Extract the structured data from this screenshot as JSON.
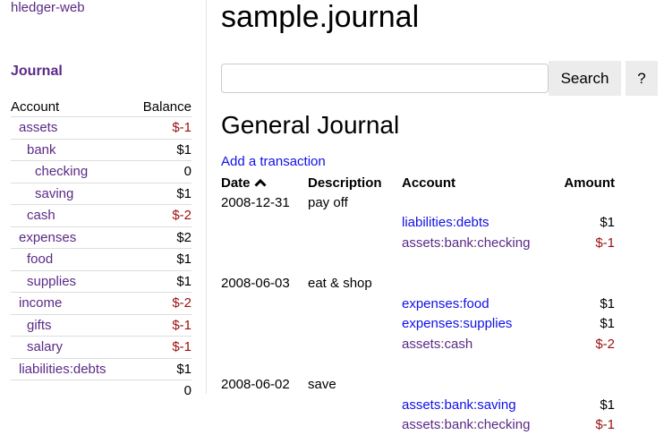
{
  "sidebar": {
    "brand": "hledger-web",
    "journal_link": "Journal",
    "headers": {
      "account": "Account",
      "balance": "Balance"
    },
    "accounts": [
      {
        "name": "assets",
        "depth": 0,
        "balance": "$-1",
        "negative": true
      },
      {
        "name": "bank",
        "depth": 1,
        "balance": "$1",
        "negative": false
      },
      {
        "name": "checking",
        "depth": 2,
        "balance": "0",
        "negative": false
      },
      {
        "name": "saving",
        "depth": 2,
        "balance": "$1",
        "negative": false
      },
      {
        "name": "cash",
        "depth": 1,
        "balance": "$-2",
        "negative": true
      },
      {
        "name": "expenses",
        "depth": 0,
        "balance": "$2",
        "negative": false
      },
      {
        "name": "food",
        "depth": 1,
        "balance": "$1",
        "negative": false
      },
      {
        "name": "supplies",
        "depth": 1,
        "balance": "$1",
        "negative": false
      },
      {
        "name": "income",
        "depth": 0,
        "balance": "$-2",
        "negative": true
      },
      {
        "name": "gifts",
        "depth": 1,
        "balance": "$-1",
        "negative": true
      },
      {
        "name": "salary",
        "depth": 1,
        "balance": "$-1",
        "negative": true
      },
      {
        "name": "liabilities:debts",
        "depth": 0,
        "balance": "$1",
        "negative": false
      }
    ],
    "total": "0"
  },
  "main": {
    "title": "sample.journal",
    "search": {
      "value": "",
      "placeholder": ""
    },
    "search_label": "Search",
    "help_label": "?",
    "heading": "General Journal",
    "add_link": "Add a transaction",
    "columns": {
      "date": "Date",
      "date_sort_icon": "chevron-up-icon",
      "description": "Description",
      "account": "Account",
      "amount": "Amount"
    },
    "transactions": [
      {
        "date": "2008-12-31",
        "description": "pay off",
        "postings": [
          {
            "account": "liabilities:debts",
            "amount": "$1",
            "visited": false
          },
          {
            "account": "assets:bank:checking",
            "amount": "$-1",
            "visited": true
          }
        ]
      },
      {
        "date": "2008-06-03",
        "description": "eat & shop",
        "postings": [
          {
            "account": "expenses:food",
            "amount": "$1",
            "visited": false
          },
          {
            "account": "expenses:supplies",
            "amount": "$1",
            "visited": false
          },
          {
            "account": "assets:cash",
            "amount": "$-2",
            "visited": true
          }
        ]
      },
      {
        "date": "2008-06-02",
        "description": "save",
        "postings": [
          {
            "account": "assets:bank:saving",
            "amount": "$1",
            "visited": false
          },
          {
            "account": "assets:bank:checking",
            "amount": "$-1",
            "visited": true
          }
        ]
      }
    ]
  },
  "colors": {
    "visited_link": "#5b2a86",
    "link": "#1010e8",
    "negative": "#9b0f0f"
  }
}
